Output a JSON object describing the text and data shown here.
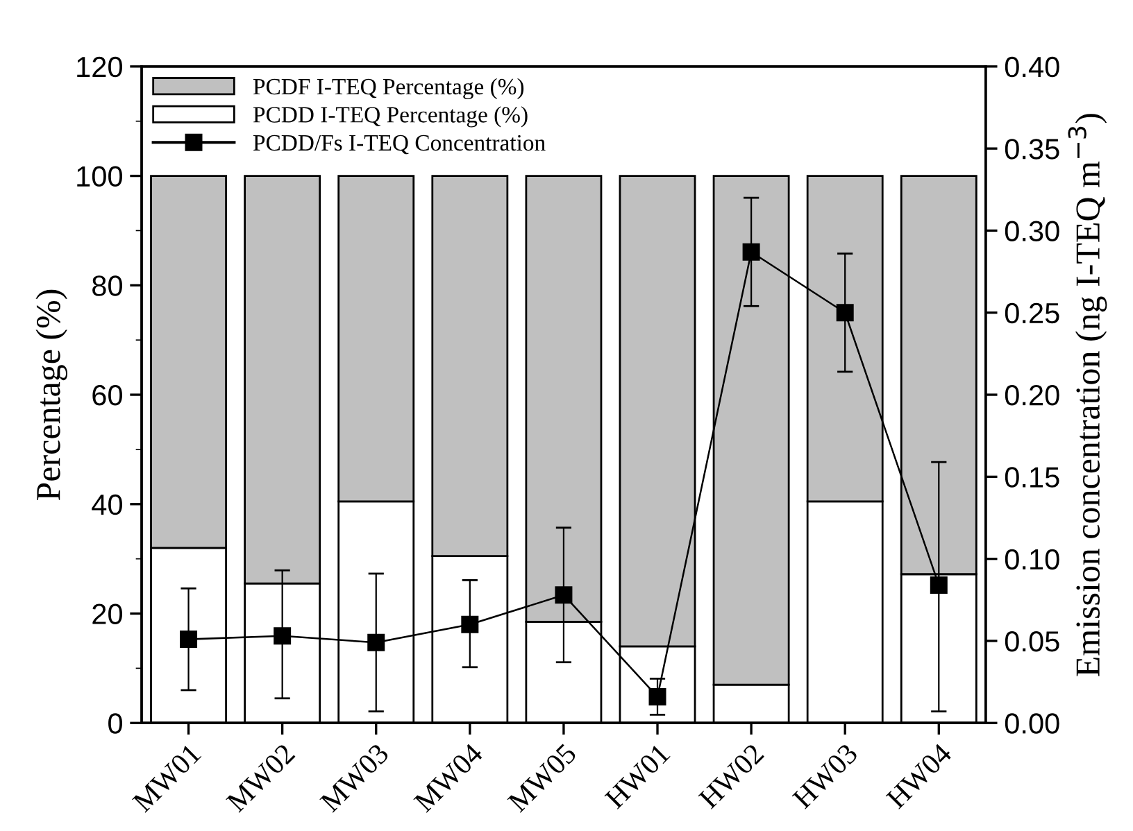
{
  "chart_data": {
    "type": "bar",
    "stacked": true,
    "categories": [
      "MW01",
      "MW02",
      "MW03",
      "MW04",
      "MW05",
      "HW01",
      "HW02",
      "HW03",
      "HW04"
    ],
    "series": [
      {
        "name": "PCDD I-TEQ Percentage (%)",
        "color": "#ffffff",
        "values": [
          32,
          25.5,
          40.5,
          30.5,
          18.5,
          14,
          7,
          40.5,
          27.2
        ]
      },
      {
        "name": "PCDF I-TEQ Percentage (%)",
        "color": "#c0c0c0",
        "values": [
          68,
          74.5,
          59.5,
          69.5,
          81.5,
          86,
          93,
          59.5,
          72.8
        ]
      },
      {
        "name": "PCDD/Fs I-TEQ Concentration",
        "type": "line",
        "axis": "y2",
        "color": "#000000",
        "marker": "square",
        "values": [
          0.051,
          0.053,
          0.049,
          0.06,
          0.078,
          0.016,
          0.287,
          0.25,
          0.084
        ],
        "errors": [
          [
            0.02,
            0.082
          ],
          [
            0.015,
            0.093
          ],
          [
            0.007,
            0.091
          ],
          [
            0.034,
            0.087
          ],
          [
            0.037,
            0.119
          ],
          [
            0.005,
            0.027
          ],
          [
            0.254,
            0.32
          ],
          [
            0.214,
            0.286
          ],
          [
            0.007,
            0.159
          ]
        ]
      }
    ],
    "ylabel": "Percentage (%)",
    "y2label": "Emission concentration (ng I-TEQ m$^{−3}$)",
    "ylim": [
      0,
      120
    ],
    "yticks": [
      0,
      20,
      40,
      60,
      80,
      100,
      120
    ],
    "y2lim": [
      0,
      0.4
    ],
    "y2ticks": [
      {
        "value": 0,
        "label": "0.00"
      },
      {
        "value": 0.05,
        "label": "0.05"
      },
      {
        "value": 0.1,
        "label": "0.10"
      },
      {
        "value": 0.15,
        "label": "0.15"
      },
      {
        "value": 0.2,
        "label": "0.20"
      },
      {
        "value": 0.25,
        "label": "0.25"
      },
      {
        "value": 0.3,
        "label": "0.30"
      },
      {
        "value": 0.35,
        "label": "0.35"
      },
      {
        "value": 0.4,
        "label": "0.40"
      }
    ],
    "legend": "top left",
    "grid": false
  }
}
